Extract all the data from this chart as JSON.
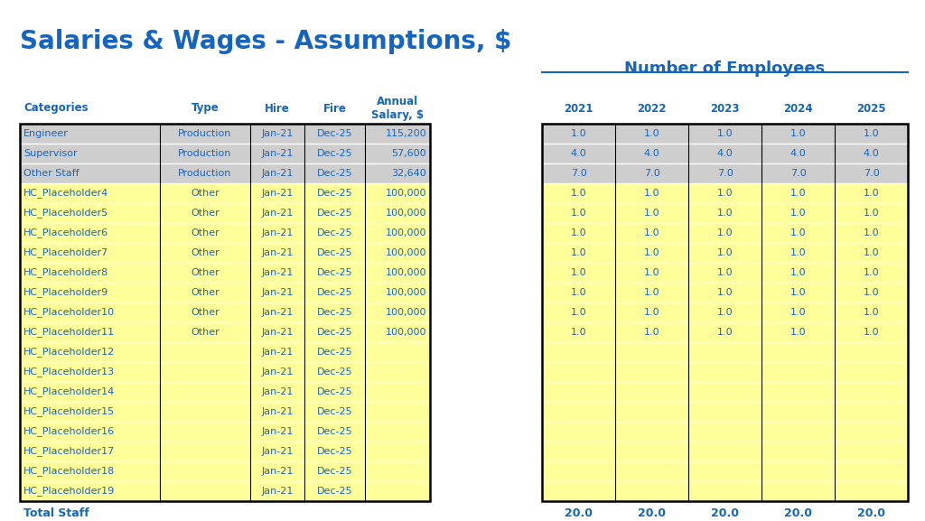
{
  "title": "Salaries & Wages - Assumptions, $",
  "title_color": "#1565C0",
  "title_fontsize": 20,
  "bg_color": "#FFFFFF",
  "right_section_title": "Number of Employees",
  "right_section_title_color": "#1565C0",
  "year_headers": [
    "2021",
    "2022",
    "2023",
    "2024",
    "2025"
  ],
  "rows": [
    {
      "cat": "Engineer",
      "type": "Production",
      "hire": "Jan-21",
      "fire": "Dec-25",
      "salary": "115,200",
      "bg": "#CECECE",
      "employees": [
        "1.0",
        "1.0",
        "1.0",
        "1.0",
        "1.0"
      ]
    },
    {
      "cat": "Supervisor",
      "type": "Production",
      "hire": "Jan-21",
      "fire": "Dec-25",
      "salary": "57,600",
      "bg": "#CECECE",
      "employees": [
        "4.0",
        "4.0",
        "4.0",
        "4.0",
        "4.0"
      ]
    },
    {
      "cat": "Other Staff",
      "type": "Production",
      "hire": "Jan-21",
      "fire": "Dec-25",
      "salary": "32,640",
      "bg": "#CECECE",
      "employees": [
        "7.0",
        "7.0",
        "7.0",
        "7.0",
        "7.0"
      ]
    },
    {
      "cat": "HC_Placeholder4",
      "type": "Other",
      "hire": "Jan-21",
      "fire": "Dec-25",
      "salary": "100,000",
      "bg": "#FFFF99",
      "employees": [
        "1.0",
        "1.0",
        "1.0",
        "1.0",
        "1.0"
      ]
    },
    {
      "cat": "HC_Placeholder5",
      "type": "Other",
      "hire": "Jan-21",
      "fire": "Dec-25",
      "salary": "100,000",
      "bg": "#FFFF99",
      "employees": [
        "1.0",
        "1.0",
        "1.0",
        "1.0",
        "1.0"
      ]
    },
    {
      "cat": "HC_Placeholder6",
      "type": "Other",
      "hire": "Jan-21",
      "fire": "Dec-25",
      "salary": "100,000",
      "bg": "#FFFF99",
      "employees": [
        "1.0",
        "1.0",
        "1.0",
        "1.0",
        "1.0"
      ]
    },
    {
      "cat": "HC_Placeholder7",
      "type": "Other",
      "hire": "Jan-21",
      "fire": "Dec-25",
      "salary": "100,000",
      "bg": "#FFFF99",
      "employees": [
        "1.0",
        "1.0",
        "1.0",
        "1.0",
        "1.0"
      ]
    },
    {
      "cat": "HC_Placeholder8",
      "type": "Other",
      "hire": "Jan-21",
      "fire": "Dec-25",
      "salary": "100,000",
      "bg": "#FFFF99",
      "employees": [
        "1.0",
        "1.0",
        "1.0",
        "1.0",
        "1.0"
      ]
    },
    {
      "cat": "HC_Placeholder9",
      "type": "Other",
      "hire": "Jan-21",
      "fire": "Dec-25",
      "salary": "100,000",
      "bg": "#FFFF99",
      "employees": [
        "1.0",
        "1.0",
        "1.0",
        "1.0",
        "1.0"
      ]
    },
    {
      "cat": "HC_Placeholder10",
      "type": "Other",
      "hire": "Jan-21",
      "fire": "Dec-25",
      "salary": "100,000",
      "bg": "#FFFF99",
      "employees": [
        "1.0",
        "1.0",
        "1.0",
        "1.0",
        "1.0"
      ]
    },
    {
      "cat": "HC_Placeholder11",
      "type": "Other",
      "hire": "Jan-21",
      "fire": "Dec-25",
      "salary": "100,000",
      "bg": "#FFFF99",
      "employees": [
        "1.0",
        "1.0",
        "1.0",
        "1.0",
        "1.0"
      ]
    },
    {
      "cat": "HC_Placeholder12",
      "type": "",
      "hire": "Jan-21",
      "fire": "Dec-25",
      "salary": "",
      "bg": "#FFFF99",
      "employees": [
        "",
        "",
        "",
        "",
        ""
      ]
    },
    {
      "cat": "HC_Placeholder13",
      "type": "",
      "hire": "Jan-21",
      "fire": "Dec-25",
      "salary": "",
      "bg": "#FFFF99",
      "employees": [
        "",
        "",
        "",
        "",
        ""
      ]
    },
    {
      "cat": "HC_Placeholder14",
      "type": "",
      "hire": "Jan-21",
      "fire": "Dec-25",
      "salary": "",
      "bg": "#FFFF99",
      "employees": [
        "",
        "",
        "",
        "",
        ""
      ]
    },
    {
      "cat": "HC_Placeholder15",
      "type": "",
      "hire": "Jan-21",
      "fire": "Dec-25",
      "salary": "",
      "bg": "#FFFF99",
      "employees": [
        "",
        "",
        "",
        "",
        ""
      ]
    },
    {
      "cat": "HC_Placeholder16",
      "type": "",
      "hire": "Jan-21",
      "fire": "Dec-25",
      "salary": "",
      "bg": "#FFFF99",
      "employees": [
        "",
        "",
        "",
        "",
        ""
      ]
    },
    {
      "cat": "HC_Placeholder17",
      "type": "",
      "hire": "Jan-21",
      "fire": "Dec-25",
      "salary": "",
      "bg": "#FFFF99",
      "employees": [
        "",
        "",
        "",
        "",
        ""
      ]
    },
    {
      "cat": "HC_Placeholder18",
      "type": "",
      "hire": "Jan-21",
      "fire": "Dec-25",
      "salary": "",
      "bg": "#FFFF99",
      "employees": [
        "",
        "",
        "",
        "",
        ""
      ]
    },
    {
      "cat": "HC_Placeholder19",
      "type": "",
      "hire": "Jan-21",
      "fire": "Dec-25",
      "salary": "",
      "bg": "#FFFF99",
      "employees": [
        "",
        "",
        "",
        "",
        ""
      ]
    }
  ],
  "total_label": "Total Staff",
  "total_values": [
    "20.0",
    "20.0",
    "20.0",
    "20.0",
    "20.0"
  ],
  "text_color": "#1565C0",
  "border_color": "#000000",
  "white_line_color": "#FFFFFF",
  "font_size": 8.5
}
